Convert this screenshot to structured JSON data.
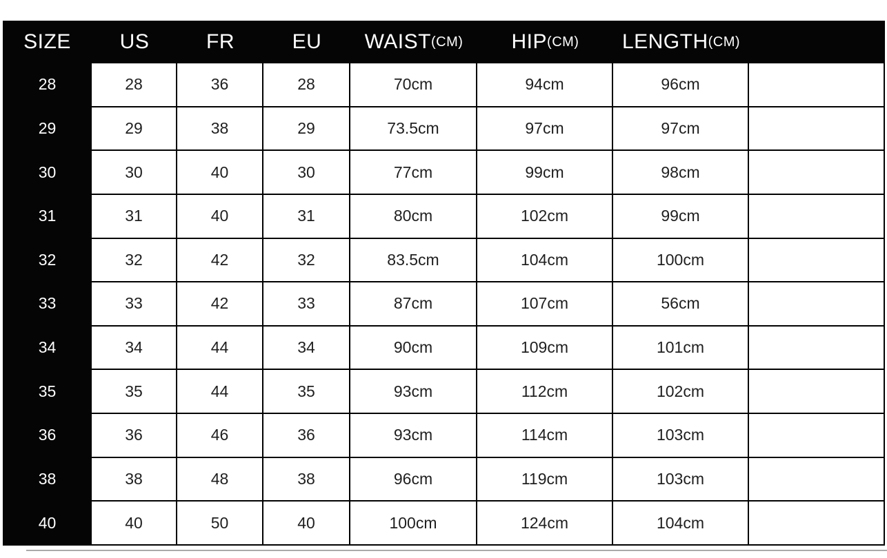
{
  "header": {
    "bg": "#050505",
    "text_color": "#ffffff",
    "columns": [
      {
        "label": "SIZE",
        "unit": ""
      },
      {
        "label": "US",
        "unit": ""
      },
      {
        "label": "FR",
        "unit": ""
      },
      {
        "label": "EU",
        "unit": ""
      },
      {
        "label": "WAIST",
        "unit": "(CM)"
      },
      {
        "label": "HIP",
        "unit": "(CM)"
      },
      {
        "label": "LENGTH",
        "unit": "(CM)"
      },
      {
        "label": "",
        "unit": ""
      }
    ]
  },
  "table": {
    "column_keys": [
      "size",
      "us",
      "fr",
      "eu",
      "waist",
      "hip",
      "length",
      "extra"
    ],
    "border_color": "#000000",
    "row_text_color": "#1f1f1f",
    "size_col_bg": "#050505",
    "size_col_text": "#ffffff",
    "rows": [
      {
        "size": "28",
        "us": "28",
        "fr": "36",
        "eu": "28",
        "waist": "70cm",
        "hip": "94cm",
        "length": "96cm",
        "extra": ""
      },
      {
        "size": "29",
        "us": "29",
        "fr": "38",
        "eu": "29",
        "waist": "73.5cm",
        "hip": "97cm",
        "length": "97cm",
        "extra": ""
      },
      {
        "size": "30",
        "us": "30",
        "fr": "40",
        "eu": "30",
        "waist": "77cm",
        "hip": "99cm",
        "length": "98cm",
        "extra": ""
      },
      {
        "size": "31",
        "us": "31",
        "fr": "40",
        "eu": "31",
        "waist": "80cm",
        "hip": "102cm",
        "length": "99cm",
        "extra": ""
      },
      {
        "size": "32",
        "us": "32",
        "fr": "42",
        "eu": "32",
        "waist": "83.5cm",
        "hip": "104cm",
        "length": "100cm",
        "extra": ""
      },
      {
        "size": "33",
        "us": "33",
        "fr": "42",
        "eu": "33",
        "waist": "87cm",
        "hip": "107cm",
        "length": "56cm",
        "extra": ""
      },
      {
        "size": "34",
        "us": "34",
        "fr": "44",
        "eu": "34",
        "waist": "90cm",
        "hip": "109cm",
        "length": "101cm",
        "extra": ""
      },
      {
        "size": "35",
        "us": "35",
        "fr": "44",
        "eu": "35",
        "waist": "93cm",
        "hip": "112cm",
        "length": "102cm",
        "extra": ""
      },
      {
        "size": "36",
        "us": "36",
        "fr": "46",
        "eu": "36",
        "waist": "93cm",
        "hip": "114cm",
        "length": "103cm",
        "extra": ""
      },
      {
        "size": "38",
        "us": "38",
        "fr": "48",
        "eu": "38",
        "waist": "96cm",
        "hip": "119cm",
        "length": "103cm",
        "extra": ""
      },
      {
        "size": "40",
        "us": "40",
        "fr": "50",
        "eu": "40",
        "waist": "100cm",
        "hip": "124cm",
        "length": "104cm",
        "extra": ""
      }
    ]
  },
  "decor": {
    "bottom_line_color": "#a9a9a9",
    "page_bg": "#ffffff"
  },
  "chart_data": {
    "type": "table",
    "columns": [
      "SIZE",
      "US",
      "FR",
      "EU",
      "WAIST(CM)",
      "HIP(CM)",
      "LENGTH(CM)"
    ],
    "rows": [
      [
        "28",
        "28",
        "36",
        "28",
        "70cm",
        "94cm",
        "96cm"
      ],
      [
        "29",
        "29",
        "38",
        "29",
        "73.5cm",
        "97cm",
        "97cm"
      ],
      [
        "30",
        "30",
        "40",
        "30",
        "77cm",
        "99cm",
        "98cm"
      ],
      [
        "31",
        "31",
        "40",
        "31",
        "80cm",
        "102cm",
        "99cm"
      ],
      [
        "32",
        "32",
        "42",
        "32",
        "83.5cm",
        "104cm",
        "100cm"
      ],
      [
        "33",
        "33",
        "42",
        "33",
        "87cm",
        "107cm",
        "56cm"
      ],
      [
        "34",
        "34",
        "44",
        "34",
        "90cm",
        "109cm",
        "101cm"
      ],
      [
        "35",
        "35",
        "44",
        "35",
        "93cm",
        "112cm",
        "102cm"
      ],
      [
        "36",
        "36",
        "46",
        "36",
        "93cm",
        "114cm",
        "103cm"
      ],
      [
        "38",
        "38",
        "48",
        "38",
        "96cm",
        "119cm",
        "103cm"
      ],
      [
        "40",
        "40",
        "50",
        "40",
        "100cm",
        "124cm",
        "104cm"
      ]
    ],
    "layout_hints": {
      "header_style": "black bar, white text",
      "first_column_style": "black background, white text",
      "grid": "on"
    }
  }
}
